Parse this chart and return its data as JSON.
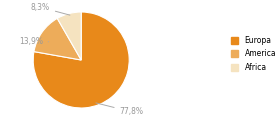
{
  "labels": [
    "Europa",
    "America",
    "Africa"
  ],
  "values": [
    77.8,
    13.9,
    8.3
  ],
  "colors": [
    "#E8891A",
    "#EDAC5A",
    "#F5E3C0"
  ],
  "pct_labels": [
    "77,8%",
    "13,9%",
    "8,3%"
  ],
  "legend_labels": [
    "Europa",
    "America",
    "Africa"
  ],
  "startangle": 90,
  "background_color": "#ffffff",
  "annotation_color": "#999999",
  "line_color": "#aaaaaa"
}
